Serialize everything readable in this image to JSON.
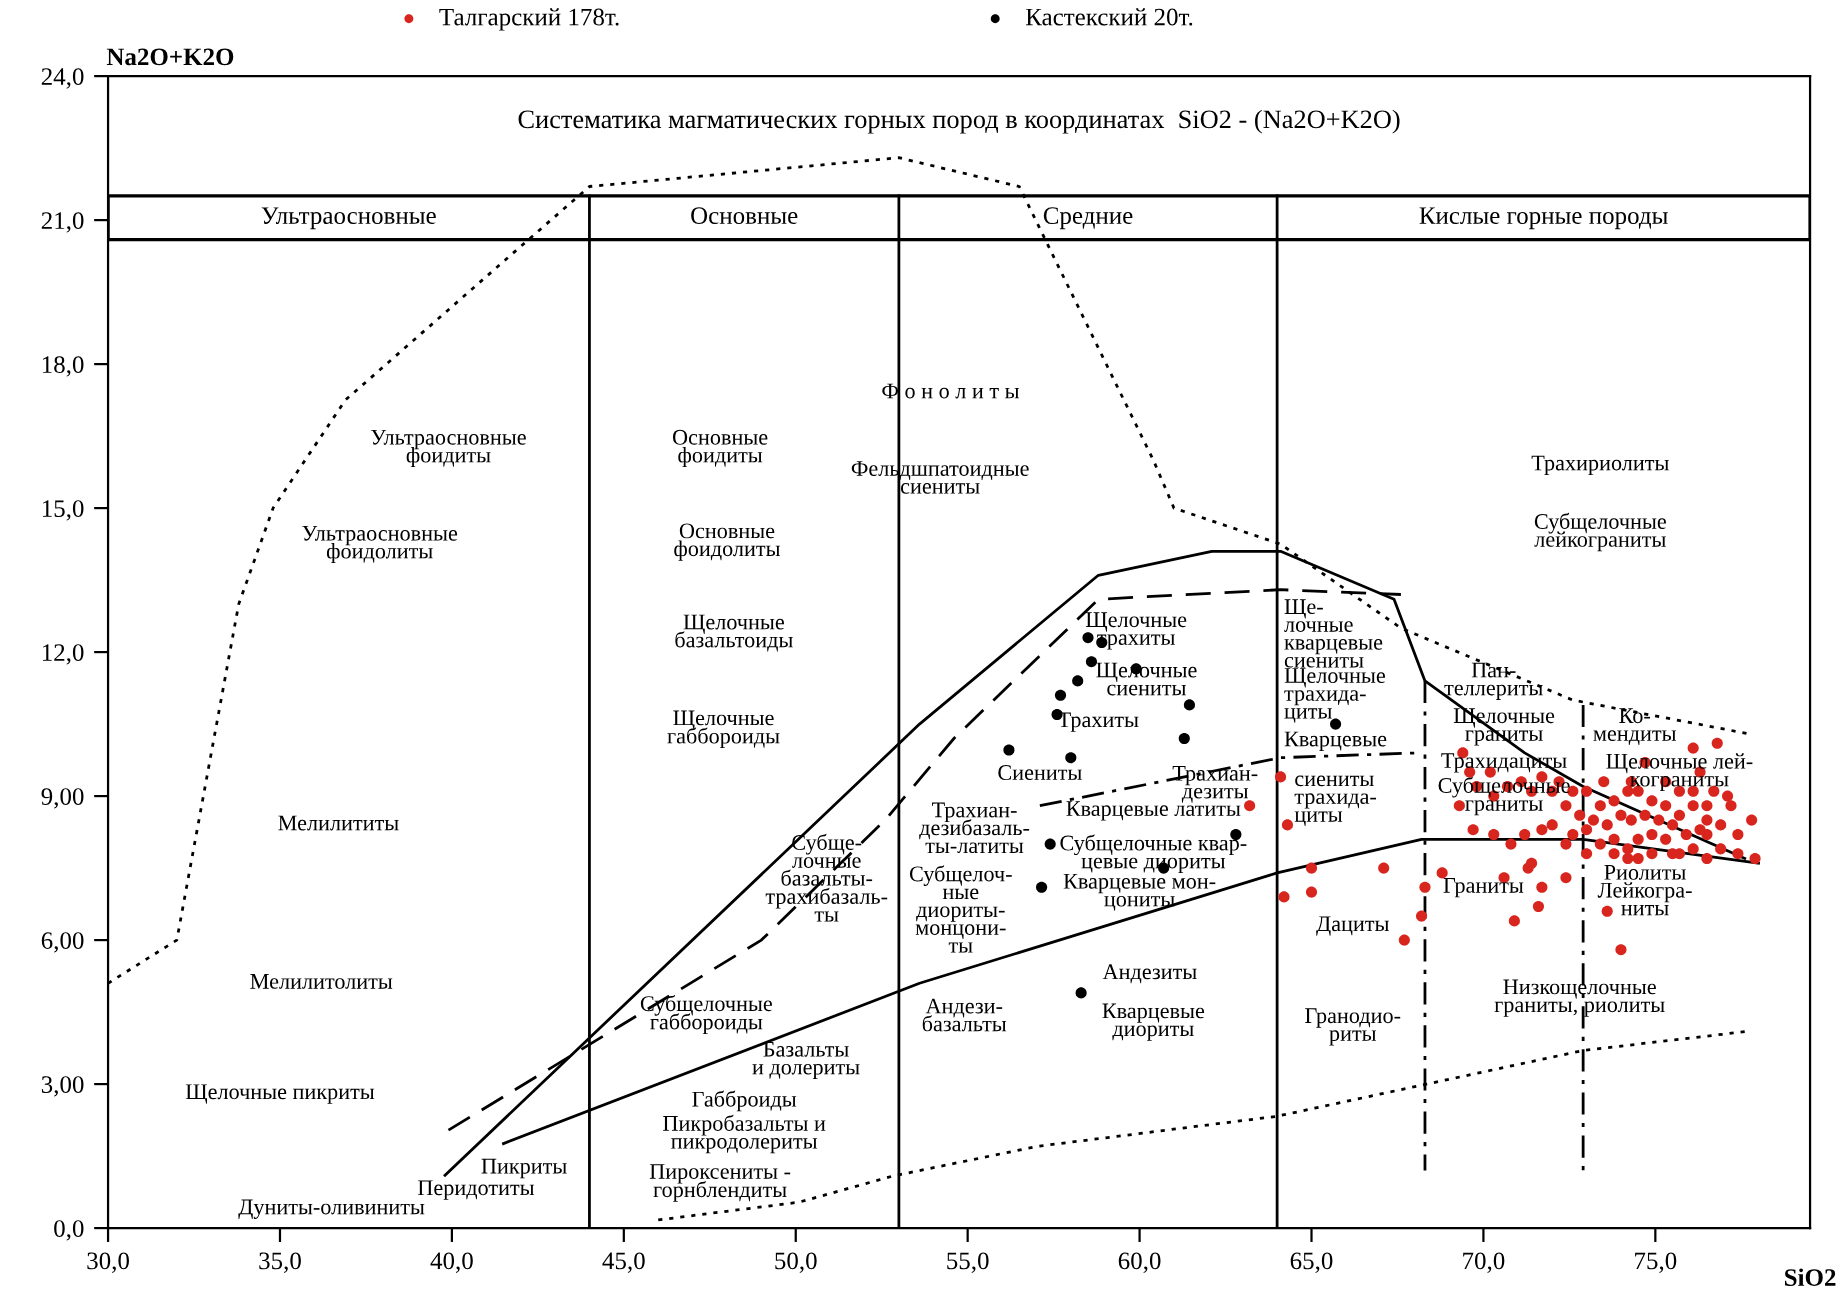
{
  "chart_data": {
    "type": "scatter",
    "title": "Систематика магматических горных пород в координатах  SiO2 - (Na2O+K2O)",
    "xlabel": "SiO2",
    "ylabel": "Na2O+K2O",
    "xlim": [
      30,
      79.5
    ],
    "ylim": [
      0,
      24
    ],
    "xticks": [
      {
        "value": 30,
        "label": "30,0"
      },
      {
        "value": 35,
        "label": "35,0"
      },
      {
        "value": 40,
        "label": "40,0"
      },
      {
        "value": 45,
        "label": "45,0"
      },
      {
        "value": 50,
        "label": "50,0"
      },
      {
        "value": 55,
        "label": "55,0"
      },
      {
        "value": 60,
        "label": "60,0"
      },
      {
        "value": 65,
        "label": "65,0"
      },
      {
        "value": 70,
        "label": "70,0"
      },
      {
        "value": 75,
        "label": "75,0"
      }
    ],
    "yticks": [
      {
        "value": 0,
        "label": "0,0"
      },
      {
        "value": 3,
        "label": "3,00"
      },
      {
        "value": 6,
        "label": "6,00"
      },
      {
        "value": 9,
        "label": "9,00"
      },
      {
        "value": 12,
        "label": "12,0"
      },
      {
        "value": 15,
        "label": "15,0"
      },
      {
        "value": 18,
        "label": "18,0"
      },
      {
        "value": 21,
        "label": "21,0"
      },
      {
        "value": 24,
        "label": "24,0"
      }
    ],
    "legend": "top",
    "series": [
      {
        "name": "Талгарский 178т.",
        "color": "#d8261e",
        "marker": "circle",
        "x": [
          64.1,
          63.2,
          64.3,
          65.0,
          67.1,
          64.2,
          65.0,
          67.7,
          68.2,
          68.3,
          68.8,
          69.4,
          69.6,
          70.2,
          69.8,
          69.3,
          70.3,
          70.7,
          71.1,
          71.4,
          71.7,
          72.0,
          72.2,
          72.4,
          72.6,
          69.7,
          70.3,
          70.8,
          71.2,
          71.7,
          72.0,
          72.4,
          71.3,
          71.7,
          70.9,
          72.4,
          71.6,
          70.6,
          71.4,
          73.6,
          74.0,
          75.5,
          76.1,
          76.5,
          76.9,
          76.8,
          77.8,
          77.9,
          77.4,
          77.1,
          76.1,
          73.0,
          73.4,
          73.8,
          74.2,
          74.5,
          74.9,
          75.3,
          75.7,
          76.1,
          76.5,
          76.7,
          76.5,
          76.3,
          75.9,
          75.5,
          75.1,
          74.7,
          74.3,
          74.0,
          73.6,
          73.2,
          73.4,
          73.8,
          74.2,
          74.5,
          74.9,
          75.3,
          75.7,
          74.9,
          74.5,
          74.2,
          73.8,
          73.0,
          72.6,
          72.8,
          76.5,
          76.9,
          77.2,
          77.4,
          74.3,
          75.3,
          75.7,
          76.1,
          73.0,
          73.5,
          74.7,
          76.3
        ],
        "values": [
          9.4,
          8.8,
          8.4,
          7.5,
          7.5,
          6.9,
          7.0,
          6.0,
          6.5,
          7.1,
          7.4,
          9.9,
          9.5,
          9.5,
          9.2,
          8.8,
          9.0,
          9.2,
          9.3,
          9.1,
          9.4,
          9.1,
          9.3,
          8.8,
          9.1,
          8.3,
          8.2,
          8.0,
          8.2,
          8.3,
          8.4,
          8.0,
          7.5,
          7.1,
          6.4,
          7.3,
          6.7,
          7.3,
          7.6,
          6.6,
          5.8,
          7.8,
          7.9,
          8.2,
          8.4,
          10.1,
          8.5,
          7.7,
          8.2,
          9.0,
          10.0,
          8.3,
          8.8,
          8.9,
          9.1,
          9.1,
          8.9,
          8.8,
          8.6,
          8.8,
          8.8,
          9.1,
          8.5,
          8.3,
          8.2,
          8.4,
          8.5,
          8.6,
          8.5,
          8.6,
          8.4,
          8.5,
          8.0,
          8.1,
          7.9,
          8.1,
          8.2,
          8.1,
          7.8,
          7.8,
          7.7,
          7.7,
          7.8,
          7.8,
          8.2,
          8.6,
          7.7,
          7.9,
          8.8,
          7.8,
          9.3,
          9.3,
          9.1,
          9.1,
          9.1,
          9.3,
          9.7,
          9.5
        ]
      },
      {
        "name": "Кастекский 20т.",
        "color": "#000000",
        "marker": "circle",
        "x": [
          58.5,
          58.9,
          58.6,
          59.9,
          58.2,
          57.7,
          61.45,
          57.6,
          61.3,
          56.2,
          58.0,
          62.8,
          57.4,
          60.7,
          57.15,
          58.3,
          65.7
        ],
        "values": [
          12.3,
          12.2,
          11.8,
          11.65,
          11.4,
          11.1,
          10.9,
          10.7,
          10.2,
          9.96,
          9.8,
          8.2,
          8.0,
          7.5,
          7.1,
          4.9,
          10.5
        ]
      },
      {
        "type": "line",
        "color": "#000000",
        "line_style": "solid",
        "x": [
          41.5,
          53.6,
          64.0,
          68.2,
          72.9,
          78.0
        ],
        "values": [
          1.76,
          5.1,
          7.4,
          8.1,
          8.1,
          7.6
        ]
      },
      {
        "type": "line",
        "color": "#000000",
        "line_style": "solid",
        "x": [
          39.8,
          53.6,
          58.8,
          62.1,
          64.1,
          67.4,
          68.3,
          71.2,
          72.9,
          77.6
        ],
        "values": [
          1.1,
          10.5,
          13.6,
          14.1,
          14.1,
          13.1,
          11.4,
          9.9,
          9.2,
          7.7
        ]
      },
      {
        "type": "line",
        "color": "#000000",
        "line_style": "dashed",
        "x": [
          39.9,
          49.0,
          52.6,
          54.6,
          58.8,
          64.1,
          67.6
        ],
        "values": [
          2.04,
          6.0,
          8.5,
          10.2,
          13.1,
          13.3,
          13.2
        ]
      },
      {
        "type": "line",
        "color": "#000000",
        "line_style": "dashdot",
        "x": [
          57.1,
          64.1,
          68.1
        ],
        "values": [
          8.8,
          9.8,
          9.9
        ]
      },
      {
        "type": "line",
        "color": "#000000",
        "line_style": "dashdot",
        "x": [
          68.3,
          68.3
        ],
        "values": [
          11.4,
          1.2
        ]
      },
      {
        "type": "line",
        "color": "#000000",
        "line_style": "dashdot",
        "x": [
          72.9,
          72.9
        ],
        "values": [
          10.9,
          1.2
        ]
      },
      {
        "type": "line",
        "color": "#000000",
        "line_style": "dotted",
        "x": [
          30.0,
          32.0,
          33.8,
          34.8,
          36.9,
          41.6,
          44.0,
          53.0,
          56.5,
          60.4,
          61.0,
          64.1,
          67.6,
          72.6,
          77.7
        ],
        "values": [
          5.1,
          6.0,
          13.0,
          15.0,
          17.25,
          20.2,
          21.7,
          22.3,
          21.7,
          16.0,
          15.0,
          14.25,
          12.5,
          11.0,
          10.3
        ]
      },
      {
        "type": "line",
        "color": "#000000",
        "line_style": "dotted",
        "x": [
          46.0,
          50.1,
          52.8,
          57.0,
          64.0,
          72.9,
          77.7
        ],
        "values": [
          0.17,
          0.54,
          1.08,
          1.7,
          2.33,
          3.7,
          4.1
        ]
      }
    ],
    "ref_lines": [
      {
        "axis": "x",
        "value": 44,
        "color": "#000000"
      },
      {
        "axis": "x",
        "value": 53,
        "color": "#000000"
      },
      {
        "axis": "x",
        "value": 64,
        "color": "#000000"
      }
    ],
    "annotations": [
      "Ультраосновные\nфоидиты",
      "Ультраосновные\nфоидолиты",
      "Мелилититы",
      "Мелилитолиты",
      "Щелочные пикриты",
      "Дуниты-оливиниты",
      "Перидотиты",
      "Пикриты",
      "Основные\nфоидиты",
      "Основные\nфоидолиты",
      "Щелочные\nбазальтоиды",
      "Щелочные\nгаббороиды",
      "Ф о н о л и т ы",
      "Фельдшпатоидные\nсиениты",
      "Субще-\nлочные\nбазальты-\nтрахибазаль-\nты",
      "Субщелочные\nгаббороиды",
      "Базальты\nи долериты",
      "Габброиды",
      "Пикробазальты и\nпикродолериты",
      "Пироксениты -\nгорнблендиты",
      "Трахиан-\nдезибазаль-\nты-латиты",
      "Субщелоч-\nные\nдиориты-\nмонцони-\nты",
      "Андези-\nбазальты",
      "Щелочные\nтрахиты",
      "Щелочные\nсиениты",
      "Трахиты",
      "Сиениты",
      "Трахиан-\nдезиты",
      "Кварцевые латиты",
      "Субщелочные квар-\nцевые диориты",
      "Кварцевые мон-\nцониты",
      "Андезиты",
      "Кварцевые\nдиориты",
      "Ще-\nлочные\nкварцевые\nсиениты",
      "Щелочные\nтрахида-\nциты",
      "Кварцевые",
      "сиениты\nтрахида-\nциты",
      "Дациты",
      "Гранодио-\nриты",
      "Пан-\nтеллериты",
      "Щелочные\nграниты",
      "Трахидациты",
      "Субщелочные\nграниты",
      "Граниты",
      "Ко-\nмендиты",
      "Щелочные лей-\nкограниты",
      "Риолиты\nЛейкогра-\nниты",
      "Низкощелочные\nграниты, риолиты",
      "Трахириолиты",
      "Субщелочные\nлейкограниты",
      "Ультраосновные",
      "Основные",
      "Средние",
      "Кислые горные породы"
    ]
  }
}
